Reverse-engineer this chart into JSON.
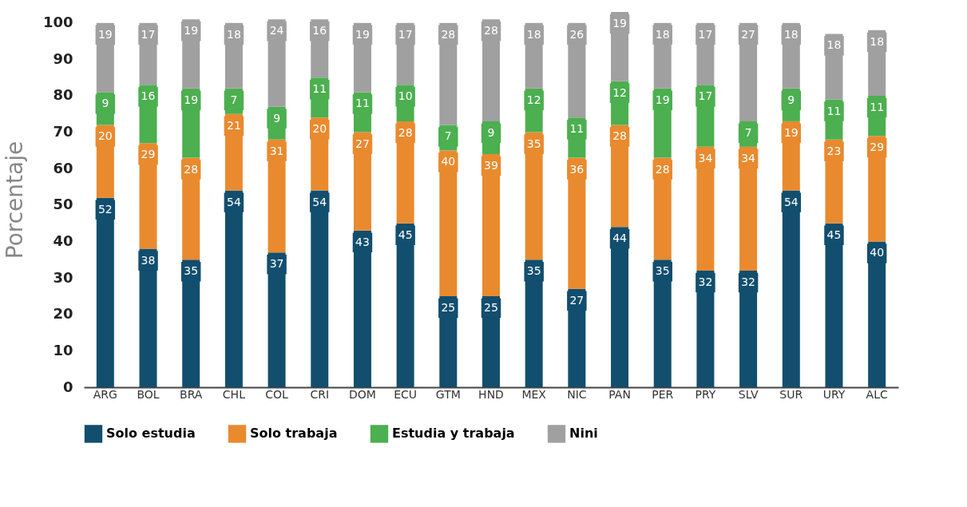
{
  "chart_data": {
    "type": "bar",
    "stacked": true,
    "ylabel": "Porcentaje",
    "categories": [
      "ARG",
      "BOL",
      "BRA",
      "CHL",
      "COL",
      "CRI",
      "DOM",
      "ECU",
      "GTM",
      "HND",
      "MEX",
      "NIC",
      "PAN",
      "PER",
      "PRY",
      "SLV",
      "SUR",
      "URY",
      "ALC"
    ],
    "series": [
      {
        "name": "Solo estudia",
        "color": "#124e6e",
        "values": [
          52,
          38,
          35,
          54,
          37,
          54,
          43,
          45,
          25,
          25,
          35,
          27,
          44,
          35,
          32,
          32,
          54,
          45,
          40
        ]
      },
      {
        "name": "Solo trabaja",
        "color": "#e98a2e",
        "values": [
          20,
          29,
          28,
          21,
          31,
          20,
          27,
          28,
          40,
          39,
          35,
          36,
          28,
          28,
          34,
          34,
          19,
          23,
          29
        ]
      },
      {
        "name": "Estudia y trabaja",
        "color": "#4caf50",
        "values": [
          9,
          16,
          19,
          7,
          9,
          11,
          11,
          10,
          7,
          9,
          12,
          11,
          12,
          19,
          17,
          7,
          9,
          11,
          11
        ]
      },
      {
        "name": "Nini",
        "color": "#a0a0a0",
        "values": [
          19,
          17,
          19,
          18,
          24,
          16,
          19,
          17,
          28,
          28,
          18,
          26,
          19,
          18,
          17,
          27,
          18,
          18,
          18
        ]
      }
    ],
    "ylim": [
      0,
      103
    ],
    "yticks": [
      0,
      10,
      20,
      30,
      40,
      50,
      60,
      70,
      80,
      90,
      100
    ],
    "grid": false,
    "legend": "bottom",
    "data_labels": true
  }
}
